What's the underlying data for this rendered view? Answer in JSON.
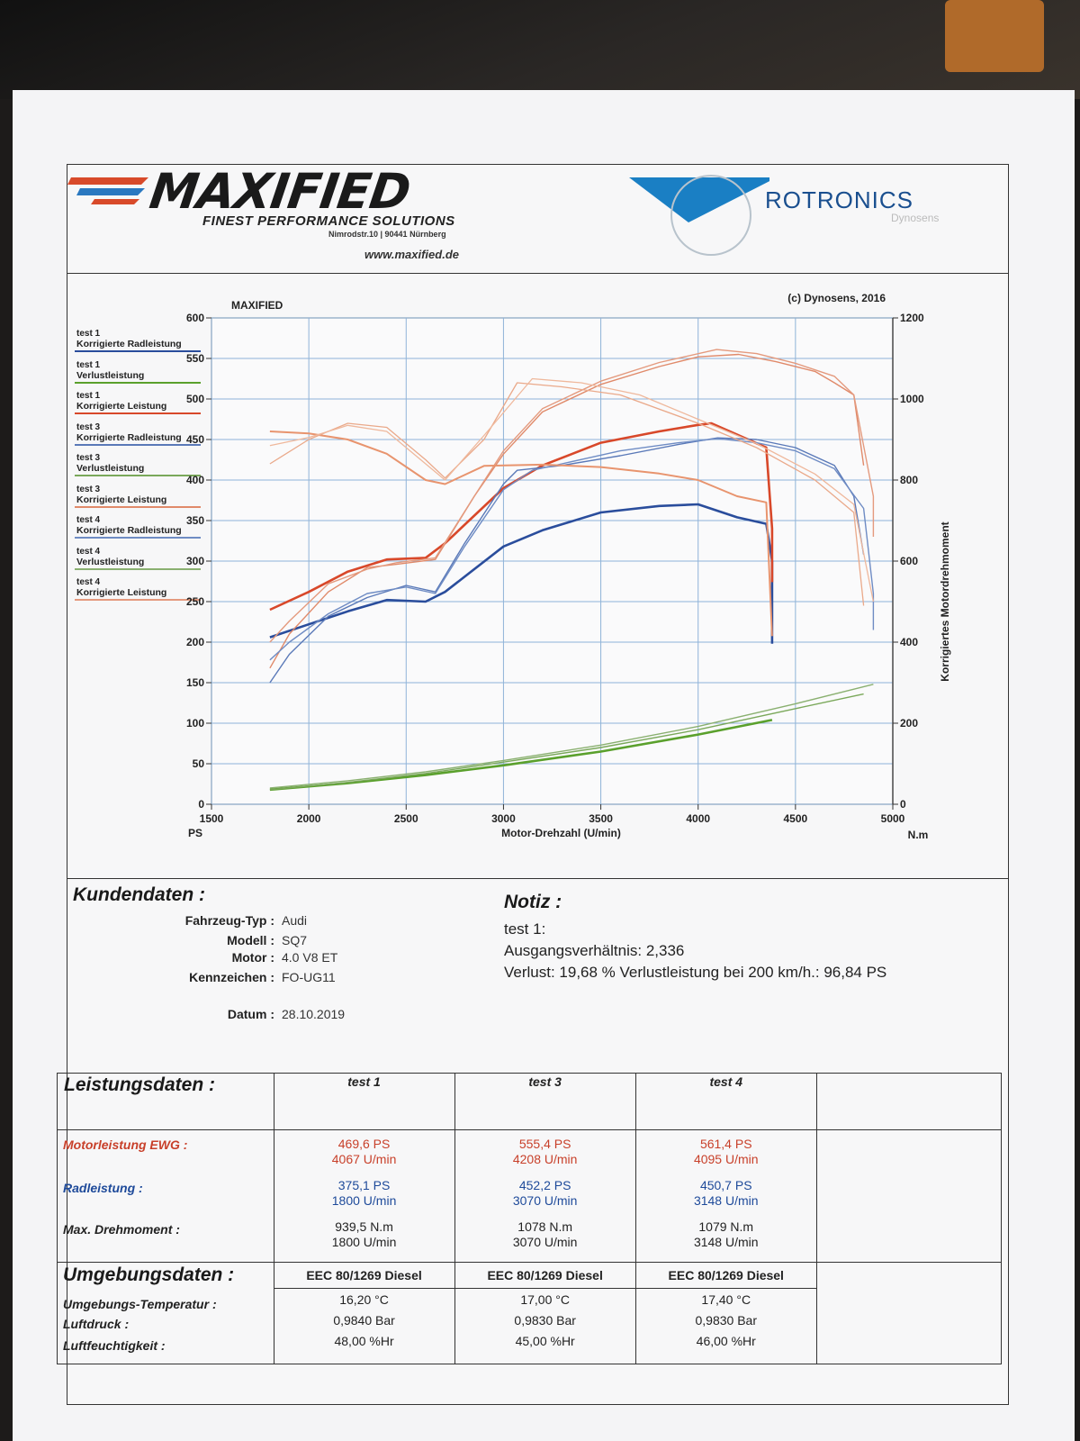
{
  "header": {
    "brand": "MAXIFIED",
    "tagline": "FINEST PERFORMANCE SOLUTIONS",
    "address": "Nimrodstr.10 | 90441 Nürnberg",
    "website": "www.maxified.de",
    "partner": "ROTRONICS",
    "partner_sub": "Dynosens",
    "colors": {
      "brand_red": "#d84a2a",
      "brand_blue": "#2a78c0",
      "rotronics_blue": "#1a7fc4"
    }
  },
  "chart_data": {
    "type": "line",
    "title": "MAXIFIED",
    "copyright": "(c) Dynosens, 2016",
    "xlabel": "Motor-Drehzahl (U/min)",
    "ylabel_left": "PS",
    "ylabel_right": "Korrigiertes Motordrehmoment",
    "right_unit": "N.m",
    "xlim": [
      1500,
      5000
    ],
    "ylim_left": [
      0,
      600
    ],
    "ylim_right": [
      0,
      1200
    ],
    "x_ticks": [
      "1500",
      "2000",
      "2500",
      "3000",
      "3500",
      "4000",
      "4500",
      "5000"
    ],
    "y_ticks_left": [
      "0",
      "50",
      "100",
      "150",
      "200",
      "250",
      "300",
      "350",
      "400",
      "450",
      "500",
      "550",
      "600"
    ],
    "y_ticks_right": [
      "0",
      "200",
      "400",
      "600",
      "800",
      "1000",
      "1200"
    ],
    "grid": true,
    "legend": [
      {
        "test": "test 1",
        "name": "Korrigierte Radleistung",
        "color": "#2a4d9c"
      },
      {
        "test": "test 1",
        "name": "Verlustleistung",
        "color": "#5aa02c"
      },
      {
        "test": "test 1",
        "name": "Korrigierte Leistung",
        "color": "#d8482a"
      },
      {
        "test": "test 3",
        "name": "Korrigierte Radleistung",
        "color": "#5a79b8"
      },
      {
        "test": "test 3",
        "name": "Verlustleistung",
        "color": "#7aa85a"
      },
      {
        "test": "test 3",
        "name": "Korrigierte Leistung",
        "color": "#e08a6a"
      },
      {
        "test": "test 4",
        "name": "Korrigierte Radleistung",
        "color": "#6f8cc4"
      },
      {
        "test": "test 4",
        "name": "Verlustleistung",
        "color": "#8ab070"
      },
      {
        "test": "test 4",
        "name": "Korrigierte Leistung",
        "color": "#e49a7e"
      }
    ],
    "series": [
      {
        "axis": "left",
        "color": "#2a4d9c",
        "width": 2.6,
        "x": [
          1800,
          2000,
          2200,
          2400,
          2600,
          2700,
          3000,
          3200,
          3500,
          3800,
          4000,
          4200,
          4350,
          4380,
          4380
        ],
        "y": [
          206,
          222,
          238,
          252,
          250,
          262,
          318,
          338,
          360,
          368,
          370,
          354,
          346,
          300,
          198
        ]
      },
      {
        "axis": "left",
        "color": "#5aa02c",
        "width": 2.6,
        "x": [
          1800,
          2200,
          2600,
          3000,
          3500,
          4000,
          4380
        ],
        "y": [
          18,
          26,
          36,
          48,
          65,
          86,
          104
        ]
      },
      {
        "axis": "left",
        "color": "#d8482a",
        "width": 2.6,
        "x": [
          1800,
          2000,
          2200,
          2400,
          2600,
          2700,
          3000,
          3200,
          3500,
          3800,
          4000,
          4067,
          4200,
          4350,
          4380,
          4380
        ],
        "y": [
          240,
          262,
          287,
          302,
          304,
          322,
          390,
          418,
          446,
          460,
          468,
          470,
          456,
          440,
          340,
          274
        ]
      },
      {
        "axis": "left",
        "color": "#5a79b8",
        "width": 1.4,
        "x": [
          1800,
          1900,
          2100,
          2300,
          2500,
          2650,
          2800,
          3000,
          3070,
          3300,
          3600,
          3900,
          4100,
          4300,
          4500,
          4700,
          4800,
          4850
        ],
        "y": [
          150,
          185,
          232,
          255,
          270,
          262,
          322,
          395,
          412,
          418,
          430,
          444,
          452,
          450,
          440,
          418,
          380,
          308
        ]
      },
      {
        "axis": "left",
        "color": "#7aa85a",
        "width": 1.4,
        "x": [
          1800,
          2200,
          2600,
          3000,
          3500,
          4000,
          4500,
          4850
        ],
        "y": [
          18,
          27,
          38,
          52,
          70,
          92,
          118,
          136
        ]
      },
      {
        "axis": "left",
        "color": "#e08a6a",
        "width": 1.4,
        "x": [
          1800,
          1900,
          2100,
          2300,
          2450,
          2650,
          2850,
          3000,
          3200,
          3500,
          3800,
          4000,
          4208,
          4400,
          4600,
          4700,
          4800,
          4850
        ],
        "y": [
          168,
          210,
          262,
          292,
          296,
          302,
          380,
          432,
          484,
          518,
          540,
          552,
          555,
          546,
          534,
          520,
          505,
          418
        ]
      },
      {
        "axis": "left",
        "color": "#6f8cc4",
        "width": 1.4,
        "x": [
          1800,
          1900,
          2100,
          2300,
          2500,
          2650,
          2800,
          3000,
          3148,
          3300,
          3600,
          3900,
          4100,
          4300,
          4500,
          4700,
          4850,
          4900,
          4900
        ],
        "y": [
          178,
          200,
          235,
          260,
          268,
          260,
          318,
          388,
          412,
          420,
          436,
          446,
          451,
          446,
          436,
          414,
          365,
          260,
          215
        ]
      },
      {
        "axis": "left",
        "color": "#8ab070",
        "width": 1.4,
        "x": [
          1800,
          2200,
          2600,
          3000,
          3500,
          4000,
          4500,
          4900
        ],
        "y": [
          20,
          29,
          40,
          54,
          73,
          96,
          124,
          148
        ]
      },
      {
        "axis": "left",
        "color": "#e49a7e",
        "width": 1.4,
        "x": [
          1800,
          1900,
          2100,
          2300,
          2450,
          2650,
          2850,
          3000,
          3200,
          3500,
          3800,
          4095,
          4300,
          4500,
          4700,
          4800,
          4900,
          4900
        ],
        "y": [
          200,
          226,
          272,
          290,
          298,
          304,
          380,
          436,
          488,
          522,
          545,
          561,
          556,
          544,
          528,
          505,
          380,
          330
        ]
      },
      {
        "axis": "right",
        "color": "#e8946e",
        "width": 2.0,
        "x": [
          1800,
          2000,
          2200,
          2400,
          2600,
          2700,
          2900,
          3200,
          3500,
          3800,
          4000,
          4200,
          4350,
          4380
        ],
        "y": [
          920,
          915,
          900,
          865,
          800,
          790,
          835,
          838,
          832,
          816,
          800,
          760,
          745,
          415
        ]
      },
      {
        "axis": "right",
        "color": "#eaa98a",
        "width": 1.3,
        "x": [
          1800,
          2000,
          2200,
          2400,
          2600,
          2700,
          2900,
          3070,
          3300,
          3600,
          4000,
          4300,
          4600,
          4800,
          4850
        ],
        "y": [
          840,
          900,
          940,
          930,
          850,
          805,
          900,
          1040,
          1030,
          1010,
          940,
          880,
          800,
          720,
          490
        ]
      },
      {
        "axis": "right",
        "color": "#efb89c",
        "width": 1.3,
        "x": [
          1800,
          2000,
          2200,
          2400,
          2600,
          2700,
          2900,
          3148,
          3400,
          3700,
          4000,
          4300,
          4600,
          4800,
          4900
        ],
        "y": [
          885,
          905,
          935,
          920,
          840,
          800,
          910,
          1050,
          1040,
          1010,
          950,
          890,
          815,
          740,
          500
        ]
      }
    ]
  },
  "customer": {
    "title": "Kundendaten :",
    "fields": [
      {
        "label": "Fahrzeug-Typ :",
        "value": "Audi"
      },
      {
        "label": "Modell :",
        "value": "SQ7"
      },
      {
        "label": "Motor :",
        "value": "4.0 V8 ET"
      },
      {
        "label": "Kennzeichen :",
        "value": "FO-UG11"
      },
      {
        "label": "Datum :",
        "value": "28.10.2019"
      }
    ]
  },
  "notes": {
    "title": "Notiz :",
    "lines": [
      "test 1:",
      "Ausgangsverhältnis: 2,336",
      "Verlust: 19,68 %  Verlustleistung bei 200 km/h.: 96,84 PS"
    ]
  },
  "performance": {
    "title": "Leistungsdaten :",
    "tests": [
      "test 1",
      "test 3",
      "test 4"
    ],
    "row_labels": {
      "power": "Motorleistung EWG :",
      "wheel": "Radleistung :",
      "torque": "Max. Drehmoment :"
    },
    "power": [
      [
        "469,6 PS",
        "4067 U/min"
      ],
      [
        "555,4 PS",
        "4208 U/min"
      ],
      [
        "561,4 PS",
        "4095 U/min"
      ]
    ],
    "wheel": [
      [
        "375,1 PS",
        "1800 U/min"
      ],
      [
        "452,2 PS",
        "3070 U/min"
      ],
      [
        "450,7 PS",
        "3148 U/min"
      ]
    ],
    "torque": [
      [
        "939,5 N.m",
        "1800 U/min"
      ],
      [
        "1078 N.m",
        "3070 U/min"
      ],
      [
        "1079 N.m",
        "3148 U/min"
      ]
    ]
  },
  "environment": {
    "title": "Umgebungsdaten :",
    "standard": [
      "EEC 80/1269 Diesel",
      "EEC 80/1269 Diesel",
      "EEC 80/1269 Diesel"
    ],
    "row_labels": [
      "Umgebungs-Temperatur :",
      "Luftdruck :",
      "Luftfeuchtigkeit :"
    ],
    "values": [
      [
        "16,20 °C",
        "0,9840 Bar",
        "48,00 %Hr"
      ],
      [
        "17,00 °C",
        "0,9830 Bar",
        "45,00 %Hr"
      ],
      [
        "17,40 °C",
        "0,9830 Bar",
        "46,00 %Hr"
      ]
    ]
  }
}
